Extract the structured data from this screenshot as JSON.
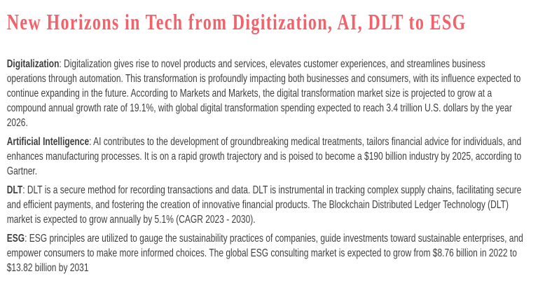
{
  "colors": {
    "title": "#f2626a",
    "body_text": "#3f3f3f",
    "background": "#ffffff"
  },
  "page": {
    "title": "New Horizons in Tech from Digitization, AI, DLT to ESG"
  },
  "article": {
    "separator": ": ",
    "paragraphs": [
      {
        "term": "Digitalization",
        "text": "Digitalization gives rise to novel products and services, elevates customer experiences, and streamlines business operations through automation. This transformation is profoundly impacting both businesses and consumers, with its influence expected to continue expanding in the future. According to Markets and Markets, the digital transformation market size is projected to grow at a compound annual growth rate of 19.1%, with global digital transformation spending expected to reach 3.4 trillion U.S. dollars by the year 2026."
      },
      {
        "term": "Artificial Intelligence",
        "text": "AI contributes to the development of groundbreaking medical treatments, tailors financial advice for individuals, and enhances manufacturing processes. It is on a rapid growth trajectory and is poised to become a $190 billion industry by 2025, according to Gartner."
      },
      {
        "term": "DLT",
        "text": "DLT is a secure method for recording transactions and data. DLT is instrumental in tracking complex supply chains, facilitating secure and efficient payments, and fostering the creation of innovative financial products. The Blockchain Distributed Ledger Technology (DLT) market is expected to grow annually by 5.1% (CAGR 2023 - 2030)."
      },
      {
        "term": "ESG",
        "text": "ESG principles are utilized to gauge the sustainability practices of companies, guide investments toward sustainable enterprises, and empower consumers to make more informed choices. The global ESG consulting market is expected to grow from $8.76 billion in 2022 to $13.82 billion by 2031"
      }
    ]
  }
}
